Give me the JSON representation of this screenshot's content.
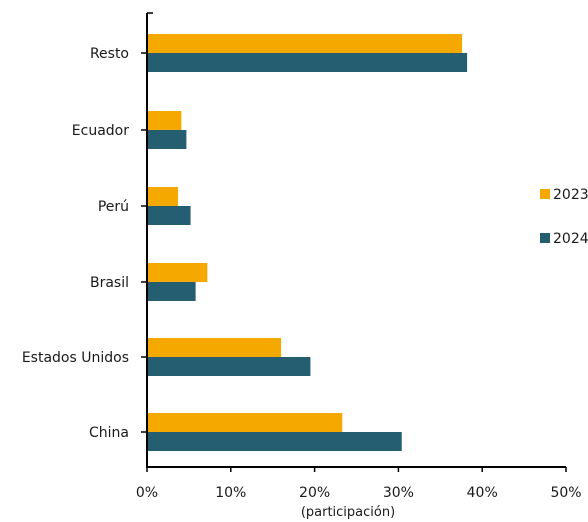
{
  "chart_data": {
    "type": "bar",
    "orientation": "horizontal",
    "categories": [
      "Resto",
      "Ecuador",
      "Perú",
      "Brasil",
      "Estados Unidos",
      "China"
    ],
    "series": [
      {
        "name": "2023",
        "color": "#F5A800",
        "values": [
          37.6,
          4.1,
          3.7,
          7.2,
          16.0,
          23.3
        ]
      },
      {
        "name": "2024",
        "color": "#245E70",
        "values": [
          38.2,
          4.7,
          5.2,
          5.8,
          19.5,
          30.4
        ]
      }
    ],
    "xlim": [
      0,
      50
    ],
    "xticks": [
      "0%",
      "10%",
      "20%",
      "30%",
      "40%",
      "50%"
    ],
    "xlabel": "(participación)",
    "grid": false,
    "legend_position": "right"
  }
}
